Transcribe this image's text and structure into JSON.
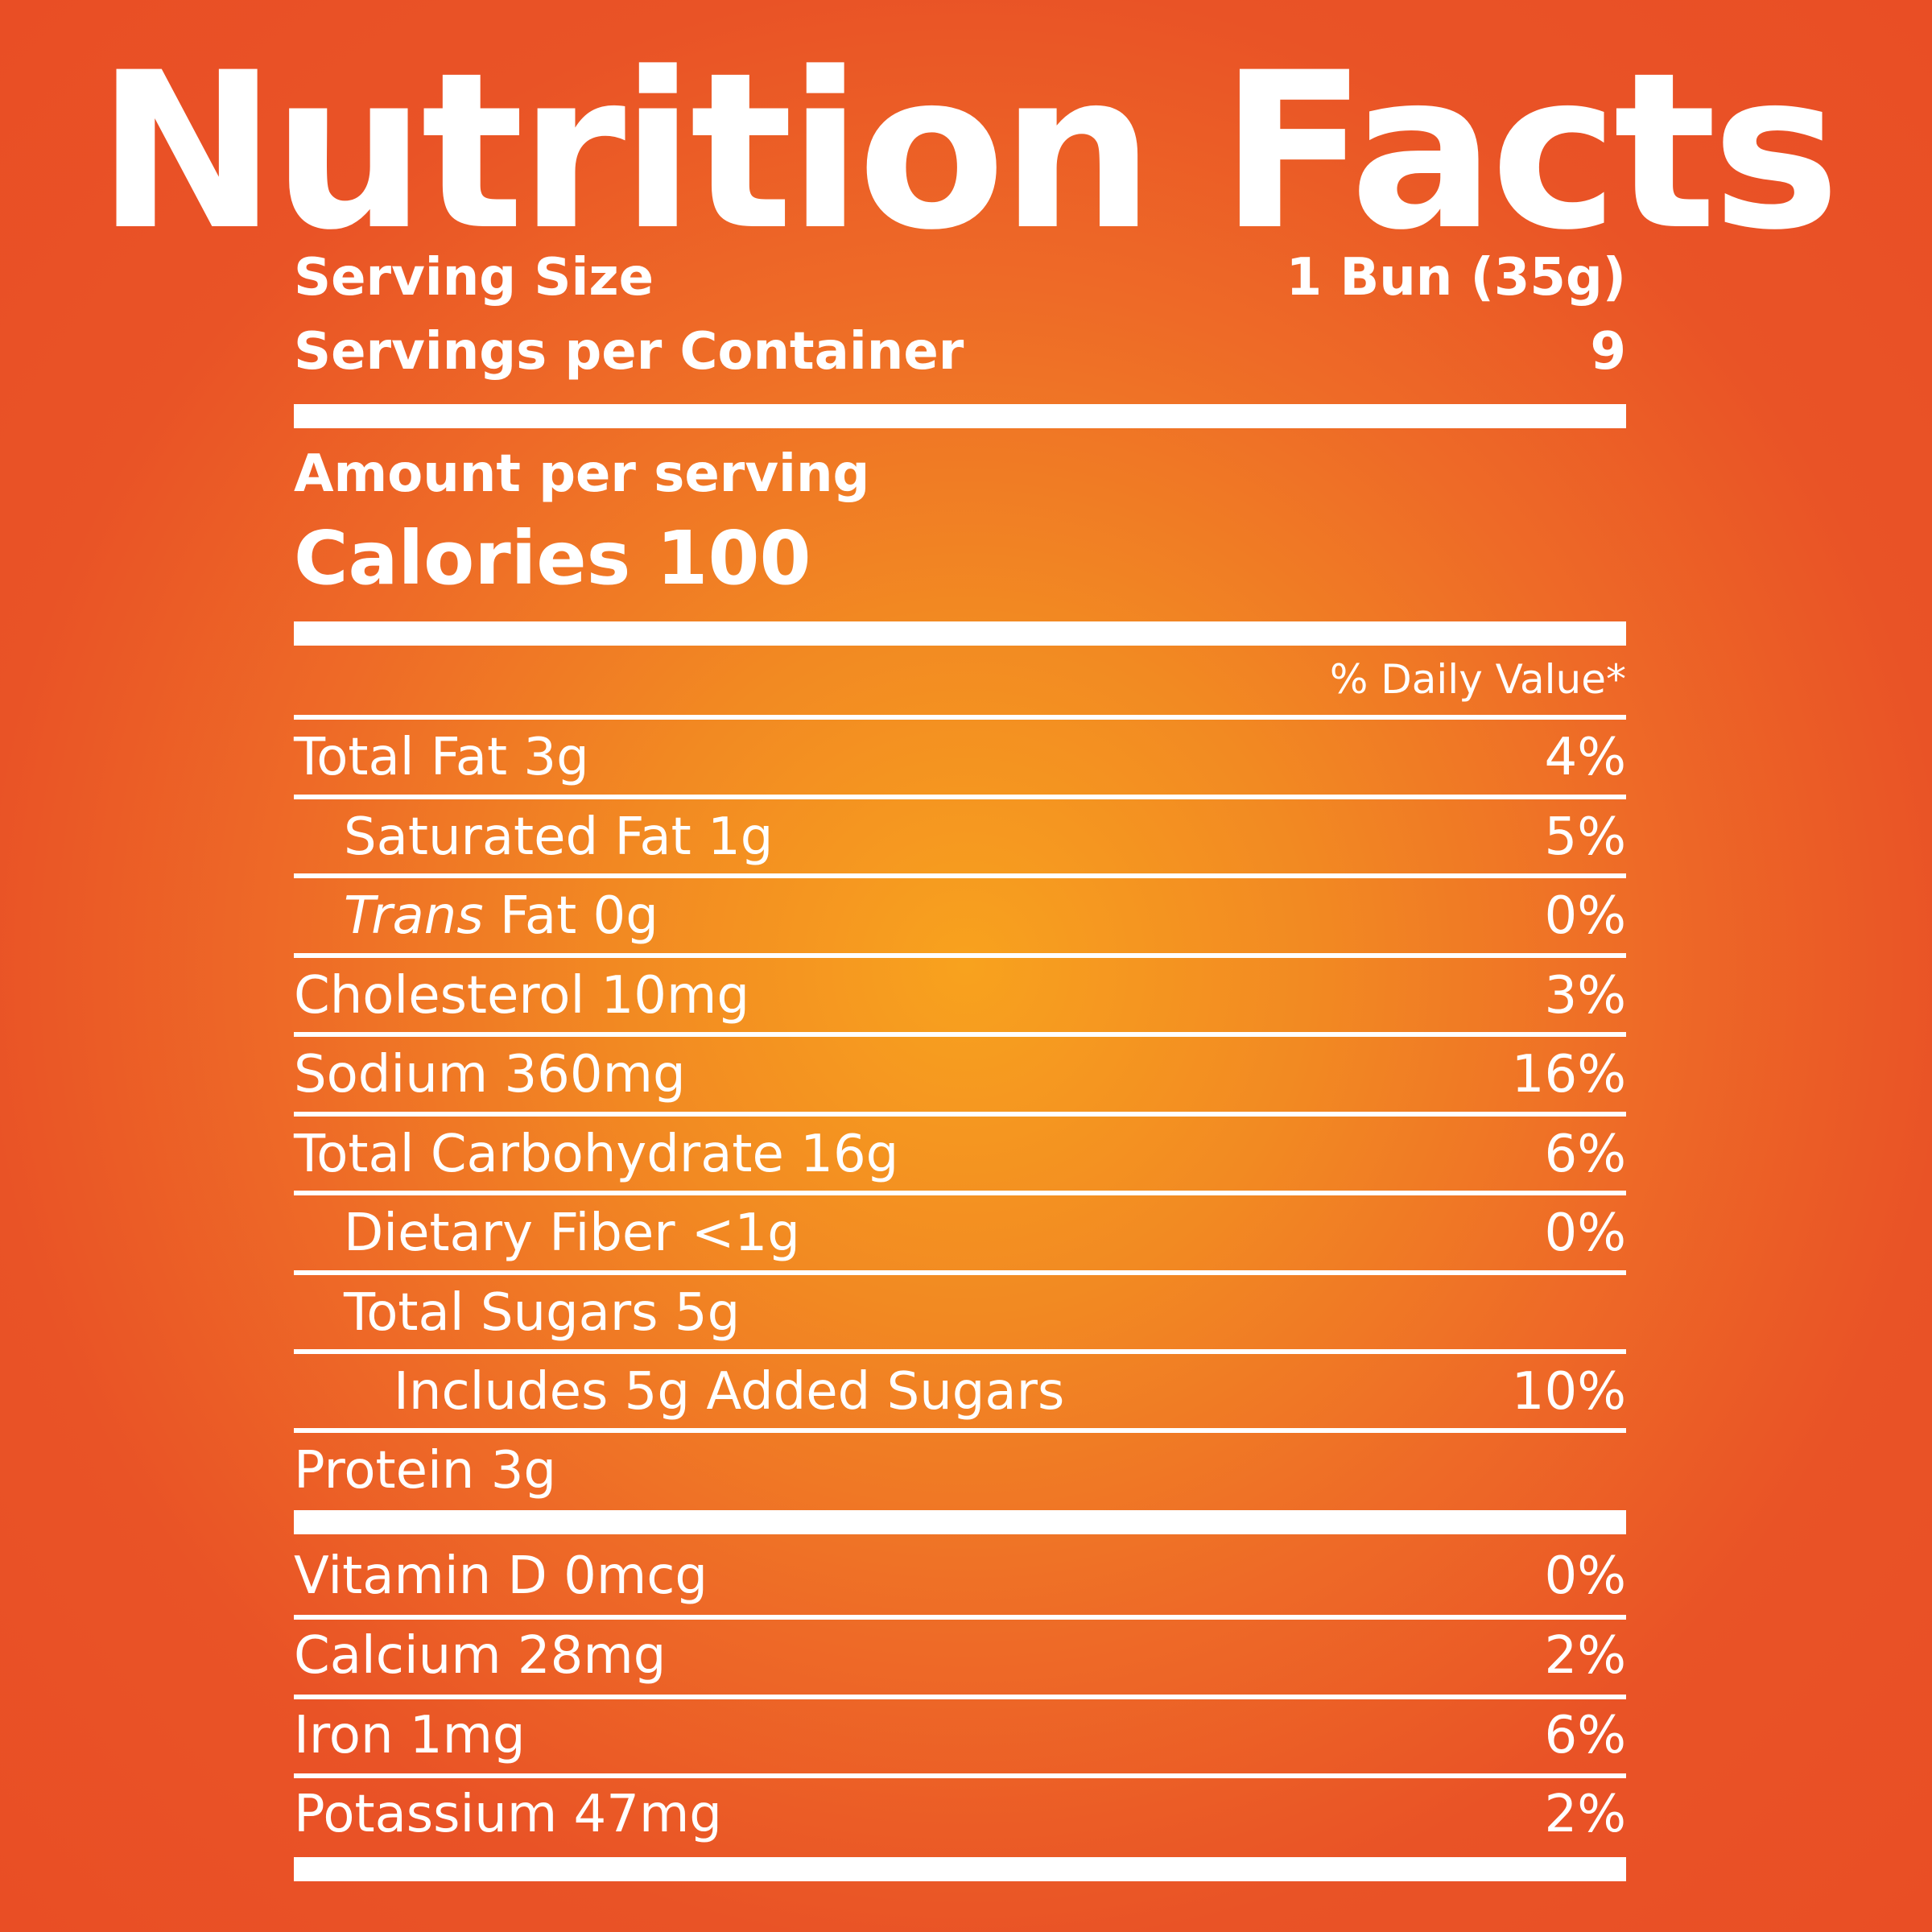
{
  "title": "Nutrition Facts",
  "serving_size": {
    "label": "Serving Size",
    "value": "1 Bun (35g)"
  },
  "servings_per_container": {
    "label": "Servings per Container",
    "value": "9"
  },
  "amount_per_serving": "Amount per serving",
  "calories": "Calories 100",
  "daily_value_header": "% Daily Value*",
  "nutrients": [
    {
      "label": "Total Fat 3g",
      "dv": "4%"
    },
    {
      "label": "Saturated Fat 1g",
      "dv": "5%"
    },
    {
      "label_italic": "Trans",
      "label_rest": " Fat 0g",
      "dv": "0%"
    },
    {
      "label": "Cholesterol 10mg",
      "dv": "3%"
    },
    {
      "label": "Sodium 360mg",
      "dv": "16%"
    },
    {
      "label": "Total Carbohydrate 16g",
      "dv": "6%"
    },
    {
      "label": "Dietary Fiber <1g",
      "dv": "0%"
    },
    {
      "label": "Total Sugars 5g",
      "dv": ""
    },
    {
      "label": "Includes 5g Added Sugars",
      "dv": "10%"
    },
    {
      "label": "Protein 3g",
      "dv": ""
    }
  ],
  "vitamins": [
    {
      "label": "Vitamin D 0mcg",
      "dv": "0%"
    },
    {
      "label": "Calcium 28mg",
      "dv": "2%"
    },
    {
      "label": "Iron 1mg",
      "dv": "6%"
    },
    {
      "label": "Potassium 47mg",
      "dv": "2%"
    }
  ],
  "colors": {
    "text": "#ffffff",
    "bg_center": "#f8a21e",
    "bg_edge": "#e94e25"
  }
}
